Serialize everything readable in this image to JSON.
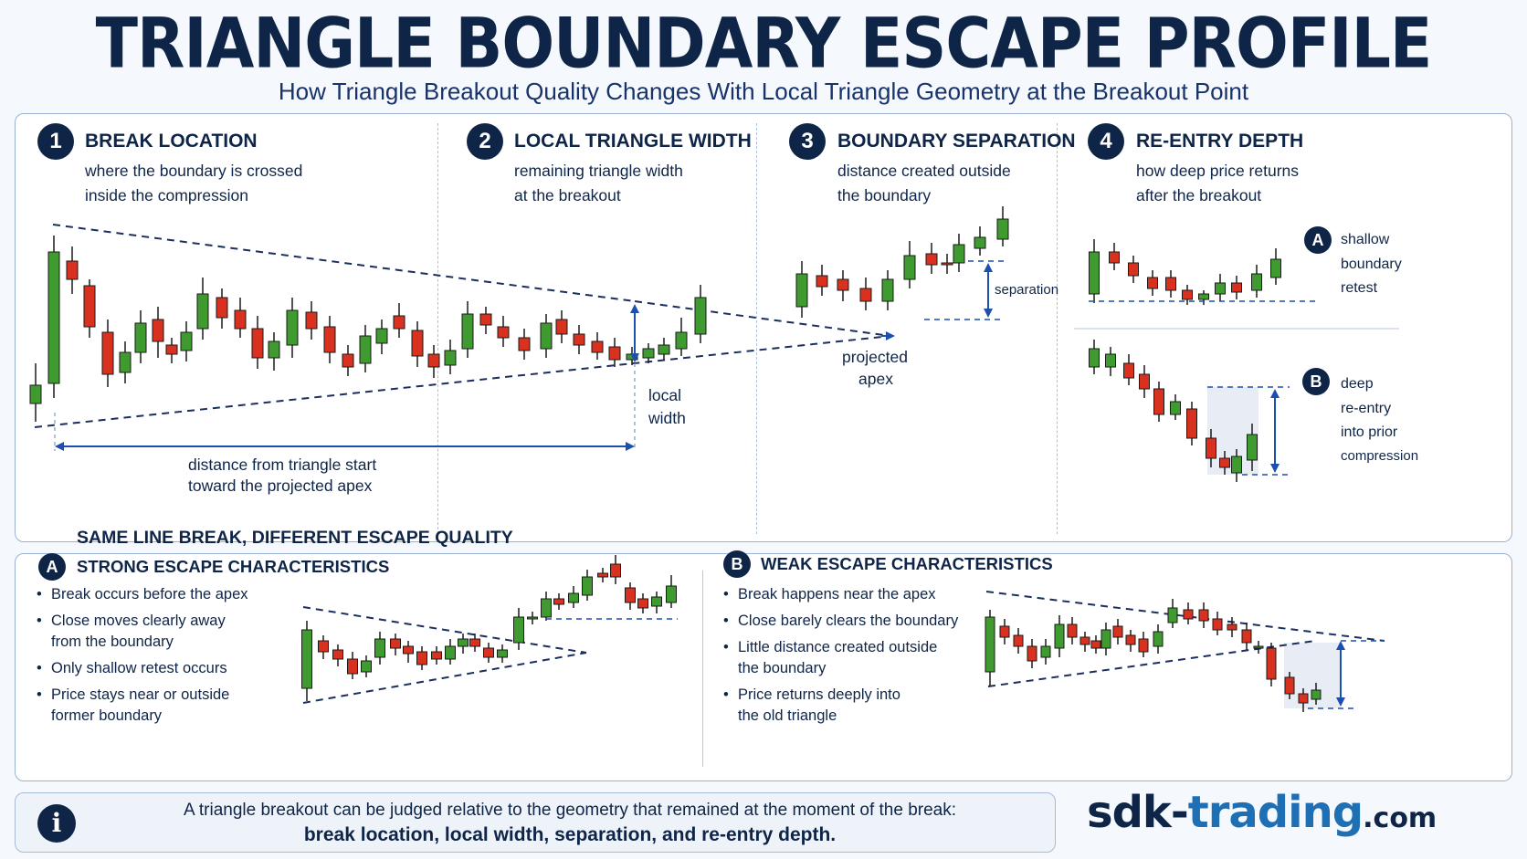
{
  "title": "TRIANGLE BOUNDARY ESCAPE PROFILE",
  "subtitle": "How Triangle Breakout Quality Changes With Local Triangle Geometry at the Breakout Point",
  "colors": {
    "navy": "#0f2548",
    "blue": "#1f6fb4",
    "bull": "#3f9a2f",
    "bear": "#d8311f",
    "arrow": "#1c4fb0"
  },
  "sections": [
    {
      "number": "1",
      "title": "BREAK LOCATION",
      "desc1": "where the boundary is crossed",
      "desc2": "inside the compression"
    },
    {
      "number": "2",
      "title": "LOCAL TRIANGLE WIDTH",
      "desc1": "remaining triangle width",
      "desc2": "at the breakout"
    },
    {
      "number": "3",
      "title": "BOUNDARY SEPARATION",
      "desc1": "distance created outside",
      "desc2": "the boundary"
    },
    {
      "number": "4",
      "title": "RE-ENTRY DEPTH",
      "desc1": "how deep price returns",
      "desc2": "after the breakout"
    }
  ],
  "annotations": {
    "distance1": "distance from triangle start",
    "distance2": "toward the projected apex",
    "local1": "local",
    "local2": "width",
    "apex1": "projected",
    "apex2": "apex",
    "separation": "separation",
    "reentryA": {
      "badge": "A",
      "l1": "shallow",
      "l2": "boundary",
      "l3": "retest"
    },
    "reentryB": {
      "badge": "B",
      "l1": "deep",
      "l2": "re-entry",
      "l3": "into prior",
      "l4": "compression"
    }
  },
  "comparison": {
    "heading": "SAME LINE BREAK, DIFFERENT ESCAPE QUALITY",
    "strong": {
      "badge": "A",
      "title": "STRONG ESCAPE CHARACTERISTICS",
      "bullets": [
        [
          "Break occurs before the apex"
        ],
        [
          "Close moves clearly away",
          "from the boundary"
        ],
        [
          "Only shallow retest occurs"
        ],
        [
          "Price stays near or outside",
          "former boundary"
        ]
      ]
    },
    "weak": {
      "badge": "B",
      "title": "WEAK ESCAPE CHARACTERISTICS",
      "bullets": [
        [
          "Break happens near the apex"
        ],
        [
          "Close barely clears the boundary"
        ],
        [
          "Little distance created outside",
          "the boundary"
        ],
        [
          "Price returns deeply into",
          "the old triangle"
        ]
      ]
    }
  },
  "info": {
    "icon": "info-icon",
    "line1": "A triangle breakout can be judged relative to the geometry that remained at the moment of the break:",
    "line2": "break location, local width, separation, and re-entry depth."
  },
  "brand": {
    "part1": "sdk-",
    "part2": "trading",
    "part3": ".com"
  }
}
